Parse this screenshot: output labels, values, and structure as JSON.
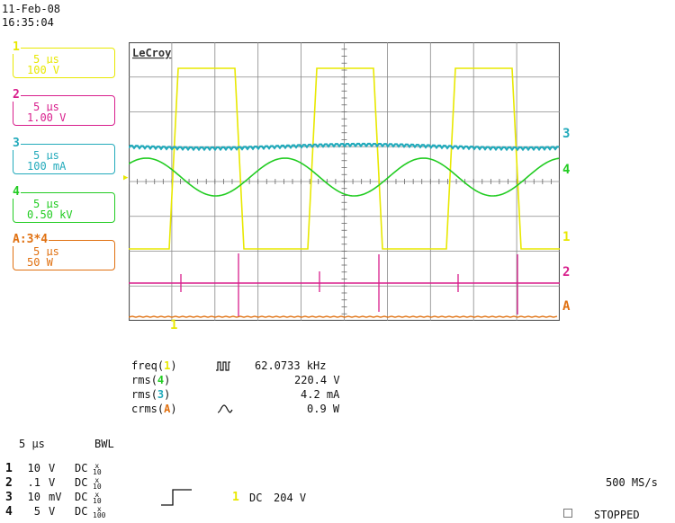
{
  "header": {
    "date": "11-Feb-08",
    "time": "16:35:04"
  },
  "brand": "LeCroy",
  "colors": {
    "ch1": "#e8e800",
    "ch2": "#d81e8c",
    "ch3": "#22aabb",
    "ch4": "#22cc22",
    "mathA": "#e07010"
  },
  "channels": [
    {
      "id": "1",
      "time_div": "5 μs",
      "volt_div": "100 V"
    },
    {
      "id": "2",
      "time_div": "5 μs",
      "volt_div": "1.00 V"
    },
    {
      "id": "3",
      "time_div": "5 μs",
      "volt_div": "100 mA"
    },
    {
      "id": "4",
      "time_div": "5 μs",
      "volt_div": "0.50 kV"
    },
    {
      "id": "A",
      "label": "A:3*4",
      "time_div": "5 μs",
      "volt_div": "50 W"
    }
  ],
  "trace_markers": {
    "ch1": "1",
    "ch2": "2",
    "ch3": "3",
    "ch4": "4",
    "mathA": "A",
    "trigger": "1"
  },
  "measurements": [
    {
      "name": "freq",
      "src": "1",
      "icon": "pulse-icon",
      "value": "62.0733 kHz"
    },
    {
      "name": "rms",
      "src": "4",
      "icon": "",
      "value": "220.4 V"
    },
    {
      "name": "rms",
      "src": "3",
      "icon": "",
      "value": "4.2 mA"
    },
    {
      "name": "crms",
      "src": "A",
      "icon": "sine-icon",
      "value": "0.9 W"
    }
  ],
  "timebase": {
    "time_div": "5 μs",
    "bwl": "BWL",
    "sample_rate": "500 MS/s",
    "status": "STOPPED"
  },
  "channel_setup": [
    {
      "n": "1",
      "val": "10",
      "unit": "V",
      "coupling": "DC",
      "probe_top": "x",
      "probe_bot": "10"
    },
    {
      "n": "2",
      "val": ".1",
      "unit": "V",
      "coupling": "DC",
      "probe_top": "x",
      "probe_bot": "10"
    },
    {
      "n": "3",
      "val": "10",
      "unit": "mV",
      "coupling": "DC",
      "probe_top": "x",
      "probe_bot": "10"
    },
    {
      "n": "4",
      "val": "5",
      "unit": "V",
      "coupling": "DC",
      "probe_top": "x",
      "probe_bot": "100"
    }
  ],
  "trigger": {
    "src": "1",
    "coupling": "DC",
    "level": "204 V"
  }
}
